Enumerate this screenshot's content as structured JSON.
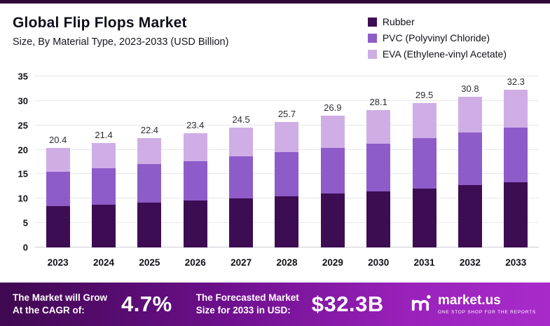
{
  "title": "Global Flip Flops Market",
  "subtitle": "Size, By Material Type, 2023-2033 (USD Billion)",
  "chart_data": {
    "type": "bar",
    "stacked": true,
    "title": "Global Flip Flops Market",
    "subtitle": "Size, By Material Type, 2023-2033 (USD Billion)",
    "categories": [
      "2023",
      "2024",
      "2025",
      "2026",
      "2027",
      "2028",
      "2029",
      "2030",
      "2031",
      "2032",
      "2033"
    ],
    "series": [
      {
        "name": "Rubber",
        "color": "#3d0d53",
        "values": [
          8.5,
          8.8,
          9.2,
          9.6,
          10.0,
          10.5,
          11.0,
          11.5,
          12.0,
          12.8,
          13.3
        ]
      },
      {
        "name": "PVC (Polyvinyl Chloride)",
        "color": "#8d5cc9",
        "values": [
          7.0,
          7.4,
          7.8,
          8.1,
          8.6,
          9.0,
          9.4,
          9.8,
          10.4,
          10.7,
          11.3
        ]
      },
      {
        "name": "EVA (Ethylene-vinyl Acetate)",
        "color": "#cfaee6",
        "values": [
          4.9,
          5.2,
          5.4,
          5.7,
          5.9,
          6.2,
          6.5,
          6.8,
          7.1,
          7.3,
          7.7
        ]
      }
    ],
    "totals": [
      20.4,
      21.4,
      22.4,
      23.4,
      24.5,
      25.7,
      26.9,
      28.1,
      29.5,
      30.8,
      32.3
    ],
    "ylim": [
      0,
      35
    ],
    "yticks": [
      0,
      5,
      10,
      15,
      20,
      25,
      30,
      35
    ],
    "legend_position": "top-right",
    "grid": true
  },
  "banner": {
    "cagr_label_line1": "The Market will Grow",
    "cagr_label_line2": "At the CAGR of:",
    "cagr_value": "4.7%",
    "forecast_label_line1": "The Forecasted Market",
    "forecast_label_line2": "Size for 2033 in USD:",
    "forecast_value": "$32.3B",
    "brand": "market.us",
    "brand_tagline": "ONE STOP SHOP FOR THE REPORTS"
  }
}
